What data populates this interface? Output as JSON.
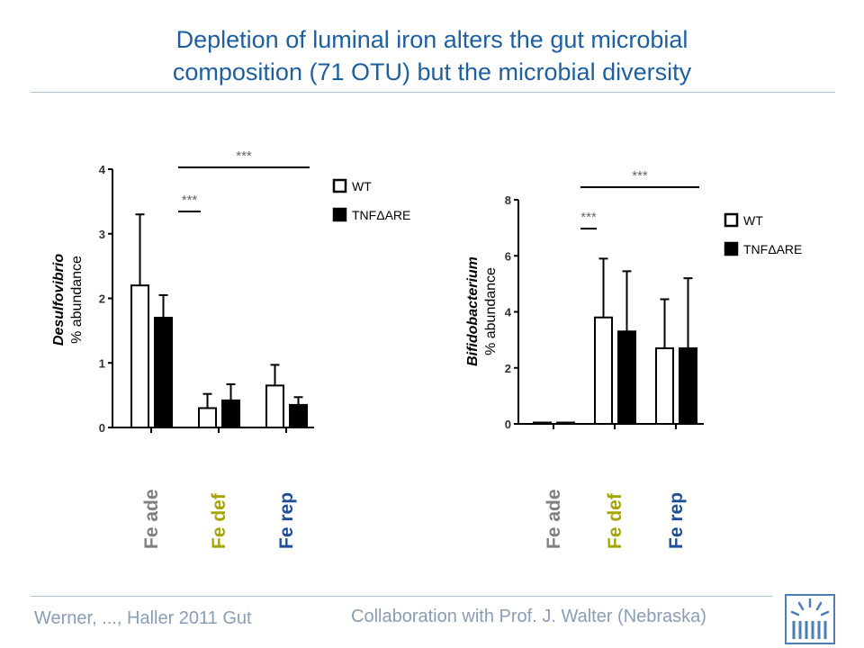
{
  "slide": {
    "title_line1": "Depletion of luminal iron alters the gut microbial",
    "title_line2": "composition (71 OTU) but the microbial diversity",
    "footer_left": "Werner, ..., Haller 2011 Gut",
    "footer_right": "Collaboration with Prof. J. Walter (Nebraska)"
  },
  "colors": {
    "title": "#1f5f9f",
    "fe_ade": "#808080",
    "fe_def": "#a6a600",
    "fe_rep": "#1f4e96",
    "wt_fill": "#ffffff",
    "tnf_fill": "#000000"
  },
  "chart_data": [
    {
      "type": "bar",
      "ylabel_italic": "Desulfovibrio",
      "ylabel": "% abundance",
      "ylim": [
        0,
        4
      ],
      "yticks": [
        "0",
        "1",
        "2",
        "3",
        "4"
      ],
      "categories": [
        "Fe ade",
        "Fe def",
        "Fe rep"
      ],
      "legend": {
        "placement": "top-right",
        "entries": [
          "WT",
          "TNFΔARE"
        ]
      },
      "series": [
        {
          "name": "WT",
          "values": [
            2.2,
            0.3,
            0.65
          ],
          "errors": [
            1.1,
            0.22,
            0.32
          ]
        },
        {
          "name": "TNFΔARE",
          "values": [
            1.7,
            0.42,
            0.35
          ],
          "errors": [
            0.35,
            0.25,
            0.12
          ]
        }
      ],
      "annotations": [
        {
          "text": "***",
          "from": 0,
          "to": 1
        },
        {
          "text": "***",
          "from": 0,
          "to": 2
        }
      ]
    },
    {
      "type": "bar",
      "ylabel_italic": "Bifidobacterium",
      "ylabel": "% abundance",
      "ylim": [
        0,
        8
      ],
      "yticks": [
        "0",
        "2",
        "4",
        "6",
        "8"
      ],
      "categories": [
        "Fe ade",
        "Fe def",
        "Fe rep"
      ],
      "legend": {
        "placement": "top-right",
        "entries": [
          "WT",
          "TNFΔARE"
        ]
      },
      "series": [
        {
          "name": "WT",
          "values": [
            0.0,
            3.8,
            2.7
          ],
          "errors": [
            0.0,
            2.1,
            1.75
          ]
        },
        {
          "name": "TNFΔARE",
          "values": [
            0.02,
            3.3,
            2.7
          ],
          "errors": [
            0.02,
            2.15,
            2.5
          ]
        }
      ],
      "annotations": [
        {
          "text": "***",
          "from": 0,
          "to": 1
        },
        {
          "text": "***",
          "from": 0,
          "to": 2
        }
      ]
    }
  ]
}
